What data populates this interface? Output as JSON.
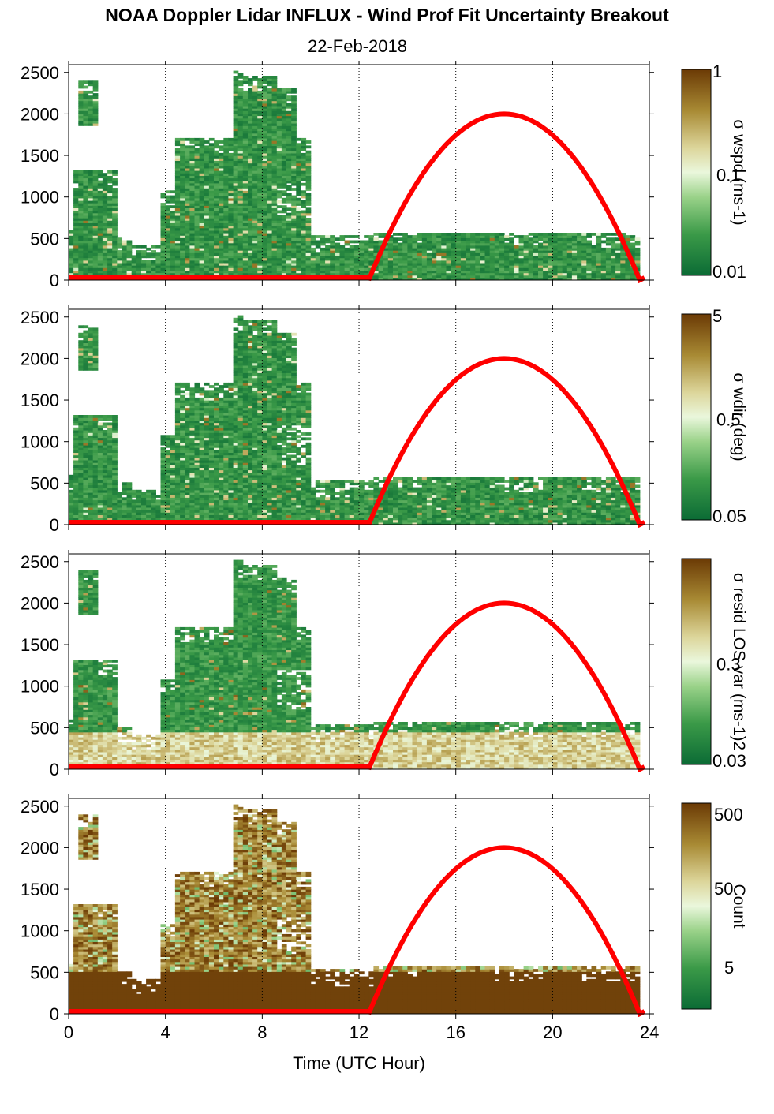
{
  "title": "NOAA Doppler Lidar INFLUX - Wind Prof Fit Uncertainty Breakout",
  "subtitle": "22-Feb-2018",
  "colors": {
    "dark_green": "#0b6b35",
    "light_green": "#cdeec0",
    "pale": "#f2f2d0",
    "tan": "#cbbf72",
    "brown": "#6b3a05",
    "curve": "#ff0000"
  },
  "chart_data": [
    {
      "type": "heatmap",
      "name": "wspd",
      "xlabel": "",
      "ylabel": "",
      "xlim": [
        0,
        24
      ],
      "ylim": [
        0,
        2550
      ],
      "xticks": [
        "0",
        "4",
        "8",
        "12",
        "16",
        "20",
        "24"
      ],
      "yticks": [
        "0",
        "500",
        "1000",
        "1500",
        "2000",
        "2500"
      ],
      "colorbar": {
        "label": "σ wspd (ms-1)",
        "ticks": [
          "0.01",
          "0.1",
          "1"
        ]
      },
      "grid": "vertical dotted lines every 4 hours",
      "solar_curve": {
        "start_hour": 12.4,
        "peak_hour": 18.0,
        "end_hour": 23.6,
        "peak_height": 2000
      }
    },
    {
      "type": "heatmap",
      "name": "wdir",
      "xlim": [
        0,
        24
      ],
      "ylim": [
        0,
        2550
      ],
      "xticks": [
        "0",
        "4",
        "8",
        "12",
        "16",
        "20",
        "24"
      ],
      "yticks": [
        "0",
        "500",
        "1000",
        "1500",
        "2000",
        "2500"
      ],
      "colorbar": {
        "label": "σ wdir (deg)",
        "ticks": [
          "0.05",
          "0.5",
          "5"
        ]
      },
      "solar_curve": {
        "start_hour": 12.4,
        "peak_hour": 18.0,
        "end_hour": 23.6,
        "peak_height": 2000
      }
    },
    {
      "type": "heatmap",
      "name": "resid",
      "xlim": [
        0,
        24
      ],
      "ylim": [
        0,
        2550
      ],
      "xticks": [
        "0",
        "4",
        "8",
        "12",
        "16",
        "20",
        "24"
      ],
      "yticks": [
        "0",
        "500",
        "1000",
        "1500",
        "2000",
        "2500"
      ],
      "colorbar": {
        "label": "σ resid LOS var (ms-1)2",
        "ticks": [
          "0.03",
          "0.3",
          ""
        ]
      },
      "solar_curve": {
        "start_hour": 12.4,
        "peak_hour": 18.0,
        "end_hour": 23.6,
        "peak_height": 2000
      }
    },
    {
      "type": "heatmap",
      "name": "count",
      "xlabel": "Time (UTC Hour)",
      "xlim": [
        0,
        24
      ],
      "ylim": [
        0,
        2550
      ],
      "xticks": [
        "0",
        "4",
        "8",
        "12",
        "16",
        "20",
        "24"
      ],
      "yticks": [
        "0",
        "500",
        "1000",
        "1500",
        "2000",
        "2500"
      ],
      "colorbar": {
        "label": "Count",
        "ticks": [
          "5",
          "50",
          "500"
        ]
      },
      "solar_curve": {
        "start_hour": 12.4,
        "peak_hour": 18.0,
        "end_hour": 23.6,
        "peak_height": 2000
      }
    }
  ]
}
